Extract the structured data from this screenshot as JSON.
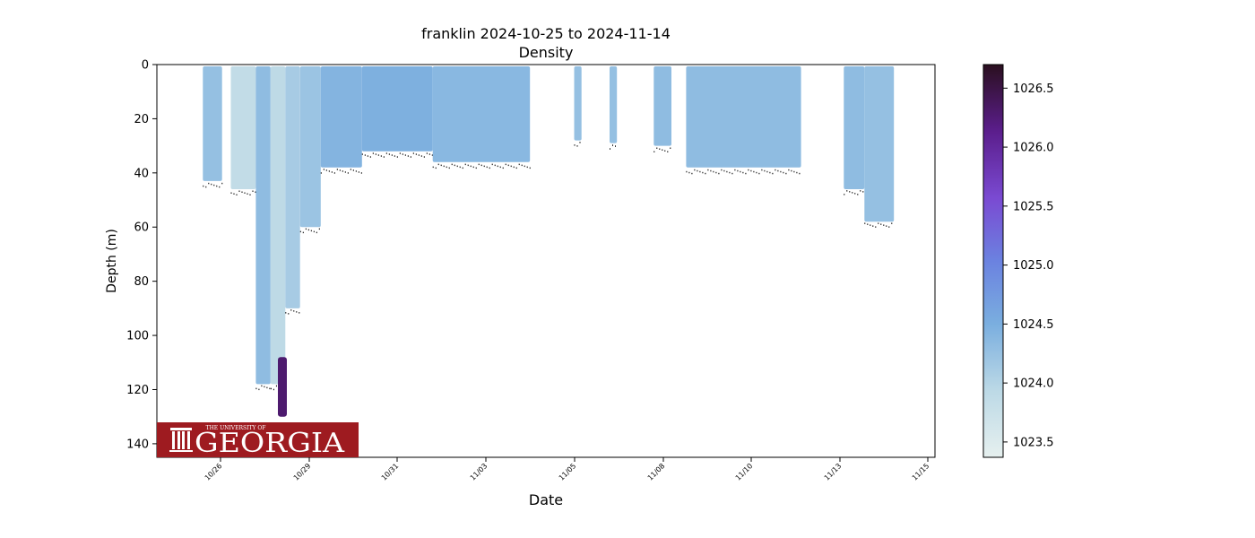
{
  "chart_data": {
    "type": "scatter",
    "title": "franklin 2024-10-25 to 2024-11-14",
    "subtitle": "Density",
    "xlabel": "Date",
    "ylabel": "Depth (m)",
    "x_ticks": [
      "10/26",
      "10/29",
      "10/31",
      "11/03",
      "11/05",
      "11/08",
      "11/10",
      "11/13",
      "11/15"
    ],
    "y_ticks": [
      0,
      20,
      40,
      60,
      80,
      100,
      120,
      140
    ],
    "ylim": [
      145,
      0
    ],
    "grid": false,
    "colormap": "dense",
    "colorbar": {
      "ticks": [
        1023.5,
        1024.0,
        1024.5,
        1025.0,
        1025.5,
        1026.0,
        1026.5
      ],
      "range": [
        1023.37,
        1026.7
      ],
      "colors": [
        "#e6f0ef",
        "#bcd9e6",
        "#7aaedf",
        "#6b82e0",
        "#7a4ad2",
        "#5b1e8c",
        "#2a0f1f"
      ]
    },
    "profiles": [
      {
        "start": "10/25 12:00",
        "end": "10/26 01:00",
        "max_depth": 43,
        "density": 1024.25
      },
      {
        "start": "10/26 07:00",
        "end": "10/27 00:00",
        "max_depth": 46,
        "density": 1023.85
      },
      {
        "start": "10/27 00:00",
        "end": "10/27 10:00",
        "max_depth": 118,
        "density": 1024.3
      },
      {
        "start": "10/27 10:00",
        "end": "10/27 20:00",
        "max_depth": 118,
        "density": 1023.9
      },
      {
        "start": "10/27 20:00",
        "end": "10/28 06:00",
        "max_depth": 90,
        "density": 1024.1
      },
      {
        "start": "10/28 06:00",
        "end": "10/28 20:00",
        "max_depth": 60,
        "density": 1024.2
      },
      {
        "start": "10/28 20:00",
        "end": "10/30 00:00",
        "max_depth": 38,
        "density": 1024.4
      },
      {
        "start": "10/30 00:00",
        "end": "11/01 00:00",
        "max_depth": 32,
        "density": 1024.45
      },
      {
        "start": "11/01 00:00",
        "end": "11/03 18:00",
        "max_depth": 36,
        "density": 1024.35
      },
      {
        "start": "11/05 00:00",
        "end": "11/05 05:00",
        "max_depth": 28,
        "density": 1024.25
      },
      {
        "start": "11/06 00:00",
        "end": "11/06 05:00",
        "max_depth": 29,
        "density": 1024.25
      },
      {
        "start": "11/07 06:00",
        "end": "11/07 18:00",
        "max_depth": 30,
        "density": 1024.3
      },
      {
        "start": "11/08 04:00",
        "end": "11/11 10:00",
        "max_depth": 38,
        "density": 1024.3
      },
      {
        "start": "11/12 15:00",
        "end": "11/13 05:00",
        "max_depth": 46,
        "density": 1024.3
      },
      {
        "start": "11/13 05:00",
        "end": "11/14 01:00",
        "max_depth": 58,
        "density": 1024.25
      }
    ],
    "dense_water": {
      "x": "10/27 18:00",
      "depth_range": [
        108,
        130
      ],
      "density": 1026.3
    }
  },
  "logo": {
    "top_text": "THE UNIVERSITY OF",
    "main_text": "GEORGIA",
    "background": "#9e1b20",
    "foreground": "#ffffff"
  }
}
